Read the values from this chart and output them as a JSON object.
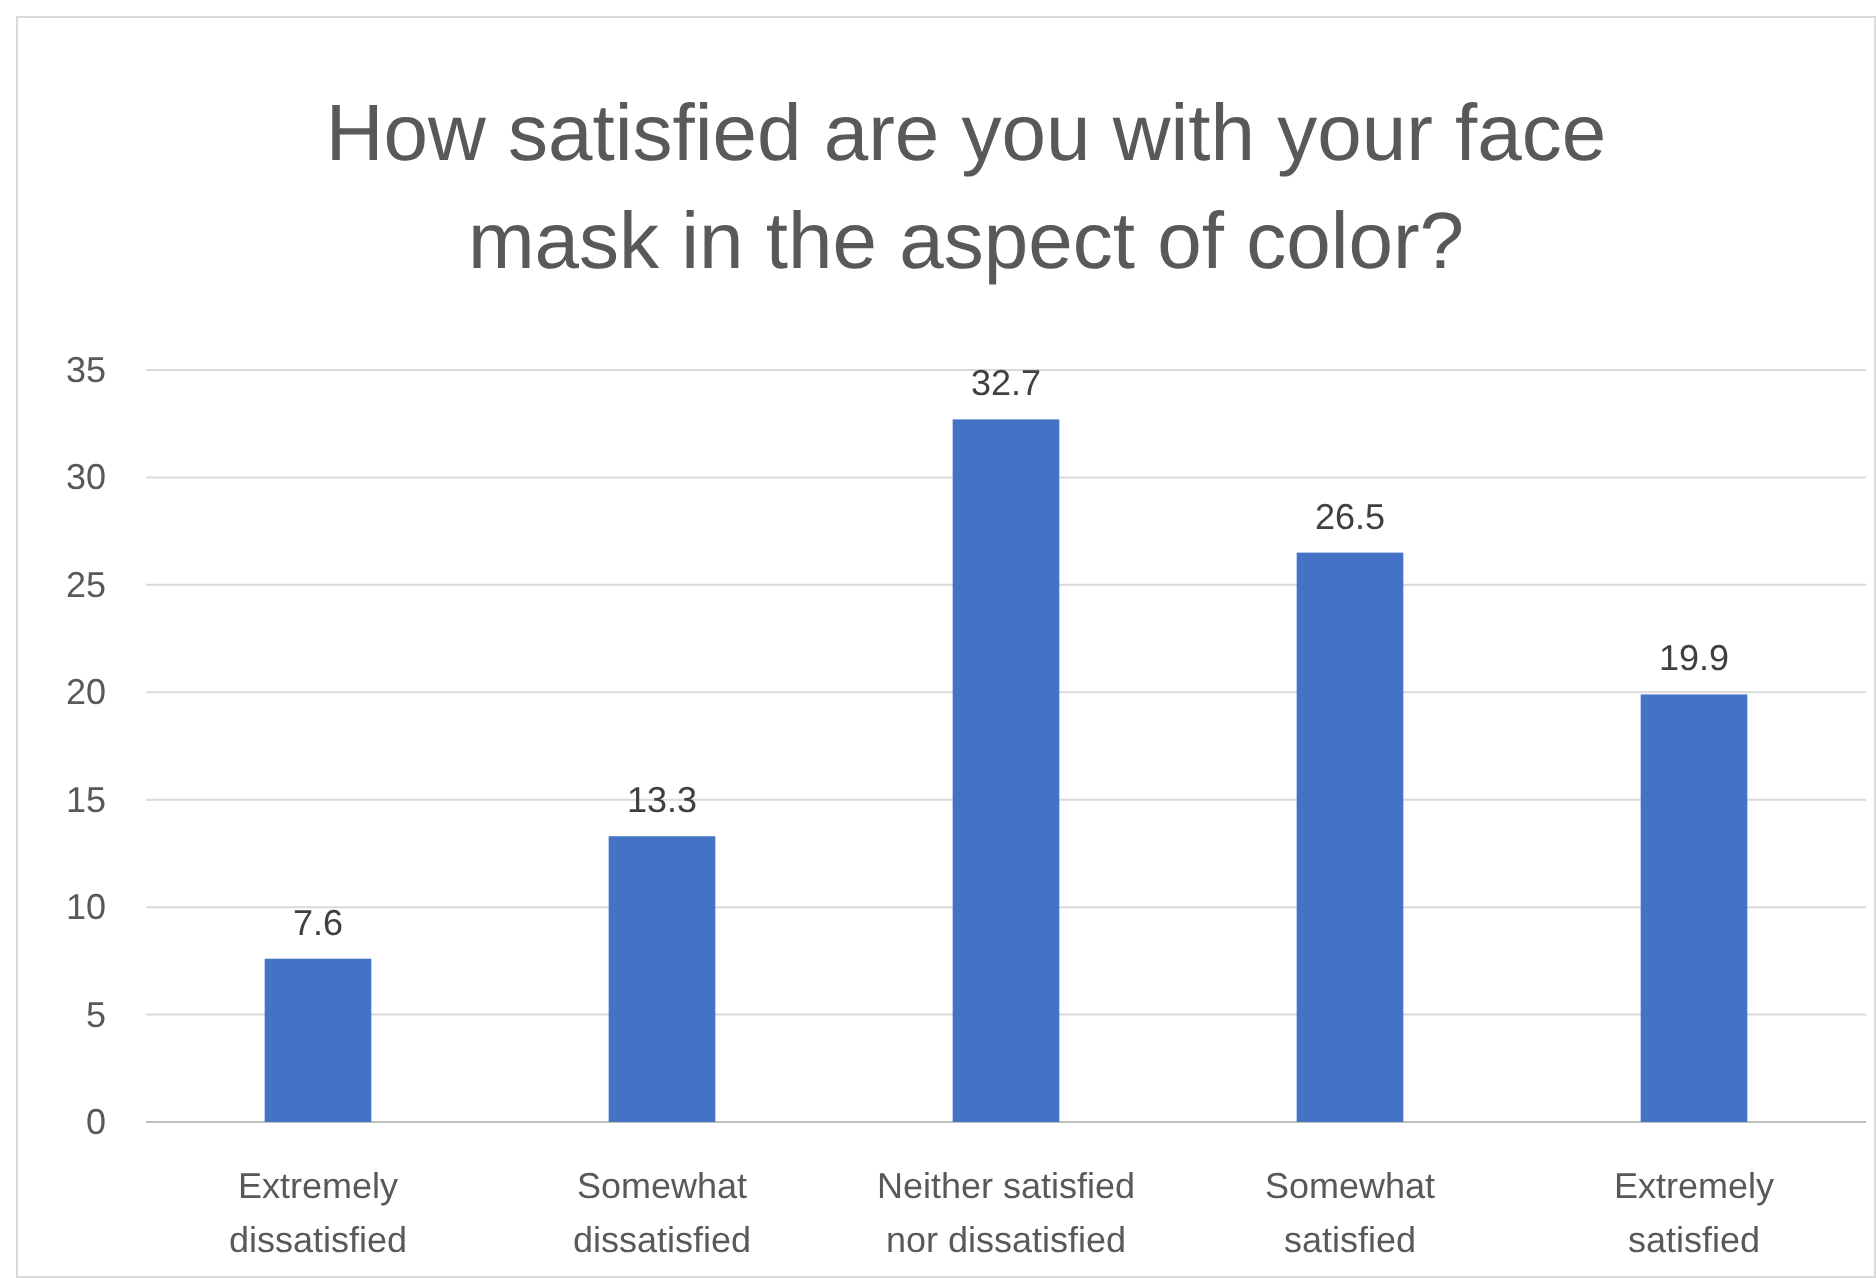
{
  "chart_data": {
    "type": "bar",
    "title": "How satisfied are you with your face mask in the aspect of color?",
    "categories": [
      "Extremely dissatisfied",
      "Somewhat dissatisfied",
      "Neither satisfied nor dissatisfied",
      "Somewhat satisfied",
      "Extremely satisfied"
    ],
    "values": [
      7.6,
      13.3,
      32.7,
      26.5,
      19.9
    ],
    "color": "#4472c4",
    "ylim": [
      0,
      35
    ],
    "yticks": [
      0,
      5,
      10,
      15,
      20,
      25,
      30,
      35
    ],
    "grid": "y",
    "data_labels": true
  }
}
